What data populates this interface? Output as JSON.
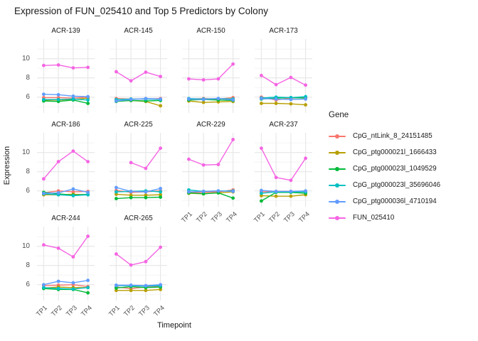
{
  "chart_data": {
    "type": "line",
    "title": "Expression of FUN_025410 and Top 5 Predictors by Colony",
    "xlabel": "Timepoint",
    "ylabel": "Expression",
    "legend_title": "Gene",
    "legend_position": "right",
    "grid": true,
    "x_categories": [
      "TP1",
      "TP2",
      "TP3",
      "TP4"
    ],
    "y_ticks": [
      6,
      8,
      10
    ],
    "y_minor_ticks": [
      5,
      7,
      9,
      11
    ],
    "ylim": [
      4.35,
      12.05
    ],
    "series_defs": [
      {
        "name": "CpG_ntLink_8_24151485",
        "color": "#F8766D"
      },
      {
        "name": "CpG_ptg000021l_1666433",
        "color": "#B79F00"
      },
      {
        "name": "CpG_ptg000023l_1049529",
        "color": "#00BA38"
      },
      {
        "name": "CpG_ptg000023l_35696046",
        "color": "#00BFC4"
      },
      {
        "name": "CpG_ptg000036l_4710194",
        "color": "#619CFF"
      },
      {
        "name": "FUN_025410",
        "color": "#F564E3"
      }
    ],
    "facets": [
      {
        "label": "ACR-139",
        "series": [
          [
            5.95,
            5.95,
            5.9,
            6.0
          ],
          [
            5.7,
            5.7,
            5.75,
            5.9
          ],
          [
            5.6,
            5.55,
            5.7,
            5.35
          ],
          [
            5.75,
            5.75,
            5.8,
            5.7
          ],
          [
            6.3,
            6.25,
            6.1,
            6.05
          ],
          [
            9.3,
            9.35,
            9.05,
            9.1
          ]
        ]
      },
      {
        "label": "ACR-145",
        "series": [
          [
            5.85,
            5.8,
            5.8,
            5.85
          ],
          [
            5.6,
            5.65,
            5.55,
            5.1
          ],
          [
            5.55,
            5.65,
            5.6,
            5.65
          ],
          [
            5.75,
            5.8,
            5.8,
            5.75
          ],
          [
            5.6,
            5.75,
            5.85,
            5.8
          ],
          [
            8.65,
            7.7,
            8.6,
            8.15
          ]
        ]
      },
      {
        "label": "ACR-150",
        "series": [
          [
            5.8,
            5.85,
            5.8,
            5.95
          ],
          [
            5.6,
            5.45,
            5.5,
            5.55
          ],
          [
            5.7,
            5.75,
            5.7,
            5.65
          ],
          [
            5.85,
            5.8,
            5.85,
            5.8
          ],
          [
            5.8,
            5.75,
            5.85,
            5.7
          ],
          [
            7.9,
            7.8,
            7.9,
            9.45
          ]
        ]
      },
      {
        "label": "ACR-173",
        "series": [
          [
            6.0,
            5.7,
            5.9,
            5.95
          ],
          [
            5.35,
            5.35,
            5.3,
            5.2
          ],
          [
            5.8,
            5.9,
            5.95,
            5.9
          ],
          [
            5.9,
            6.0,
            5.95,
            6.05
          ],
          [
            5.85,
            5.8,
            5.75,
            5.8
          ],
          [
            8.25,
            7.3,
            8.05,
            7.25
          ]
        ]
      },
      {
        "label": "ACR-186",
        "series": [
          [
            5.8,
            6.0,
            5.9,
            5.95
          ],
          [
            5.6,
            5.6,
            5.65,
            5.6
          ],
          [
            5.85,
            5.7,
            5.55,
            5.65
          ],
          [
            5.7,
            5.6,
            5.5,
            5.6
          ],
          [
            5.75,
            5.8,
            6.2,
            5.85
          ],
          [
            7.25,
            9.05,
            10.15,
            9.05
          ]
        ]
      },
      {
        "label": "ACR-225",
        "series": [
          [
            6.05,
            5.85,
            5.9,
            6.0
          ],
          [
            5.65,
            5.55,
            5.55,
            5.6
          ],
          [
            5.2,
            5.3,
            5.3,
            5.35
          ],
          [
            5.9,
            5.95,
            6.0,
            5.9
          ],
          [
            6.35,
            5.95,
            5.9,
            6.25
          ],
          [
            null,
            8.95,
            8.35,
            10.45
          ]
        ]
      },
      {
        "label": "ACR-229",
        "series": [
          [
            5.8,
            5.85,
            5.9,
            6.1
          ],
          [
            5.75,
            5.7,
            5.8,
            5.9
          ],
          [
            5.8,
            5.7,
            5.8,
            5.25
          ],
          [
            6.1,
            5.95,
            6.0,
            6.0
          ],
          [
            5.9,
            5.95,
            6.0,
            5.95
          ],
          [
            9.3,
            8.7,
            8.75,
            11.35
          ]
        ]
      },
      {
        "label": "ACR-237",
        "series": [
          [
            5.9,
            5.95,
            5.95,
            5.95
          ],
          [
            5.5,
            5.45,
            5.45,
            5.6
          ],
          [
            4.95,
            5.85,
            5.85,
            5.75
          ],
          [
            5.75,
            5.9,
            5.9,
            5.9
          ],
          [
            6.05,
            5.95,
            5.95,
            6.0
          ],
          [
            10.45,
            7.4,
            7.1,
            9.4
          ]
        ]
      },
      {
        "label": "ACR-244",
        "series": [
          [
            5.9,
            5.95,
            6.0,
            5.8
          ],
          [
            5.65,
            5.75,
            5.7,
            5.7
          ],
          [
            5.6,
            5.5,
            5.5,
            5.15
          ],
          [
            5.7,
            5.6,
            5.55,
            5.7
          ],
          [
            6.0,
            6.35,
            6.2,
            6.45
          ],
          [
            10.15,
            9.8,
            8.9,
            11.05
          ]
        ]
      },
      {
        "label": "ACR-265",
        "series": [
          [
            5.75,
            5.6,
            5.75,
            5.8
          ],
          [
            5.4,
            5.4,
            5.4,
            5.5
          ],
          [
            5.65,
            5.8,
            5.7,
            5.75
          ],
          [
            5.9,
            5.9,
            5.85,
            5.9
          ],
          [
            5.95,
            5.95,
            5.9,
            6.0
          ],
          [
            9.2,
            8.05,
            8.4,
            9.9
          ]
        ]
      }
    ]
  }
}
